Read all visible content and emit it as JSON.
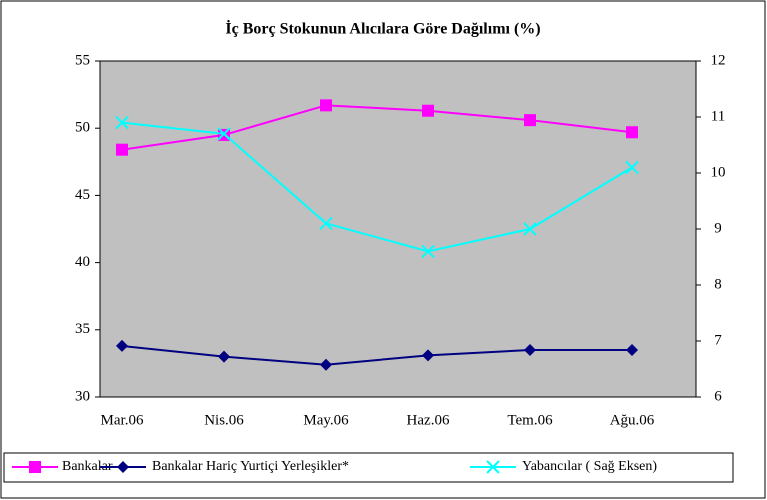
{
  "chart_data": {
    "type": "line",
    "title": "İç Borç Stokunun Alıcılara Göre Dağılımı (%)",
    "categories": [
      "Mar.06",
      "Nis.06",
      "May.06",
      "Haz.06",
      "Tem.06",
      "Ağu.06"
    ],
    "series": [
      {
        "name": "Bankalar",
        "color": "#ff00ff",
        "marker": "square",
        "values": [
          48.4,
          49.5,
          51.7,
          51.3,
          50.6,
          49.7
        ]
      },
      {
        "name": "Bankalar Hariç Yurtiçi Yerleşikler*",
        "color": "#000080",
        "marker": "diamond",
        "values": [
          33.8,
          33.0,
          32.4,
          33.1,
          33.5,
          33.5
        ]
      },
      {
        "name": "Yabancılar ( Sağ Eksen)",
        "color": "#00ffff",
        "marker": "x",
        "axis": "y2",
        "values": [
          10.9,
          10.7,
          9.1,
          8.6,
          9.0,
          10.1
        ]
      }
    ],
    "ylim": [
      30,
      55
    ],
    "yticks": [
      30,
      35,
      40,
      45,
      50,
      55
    ],
    "y2lim": [
      6,
      12
    ],
    "y2ticks": [
      6,
      7,
      8,
      9,
      10,
      11,
      12
    ],
    "grid": false,
    "legend": "bottom"
  }
}
